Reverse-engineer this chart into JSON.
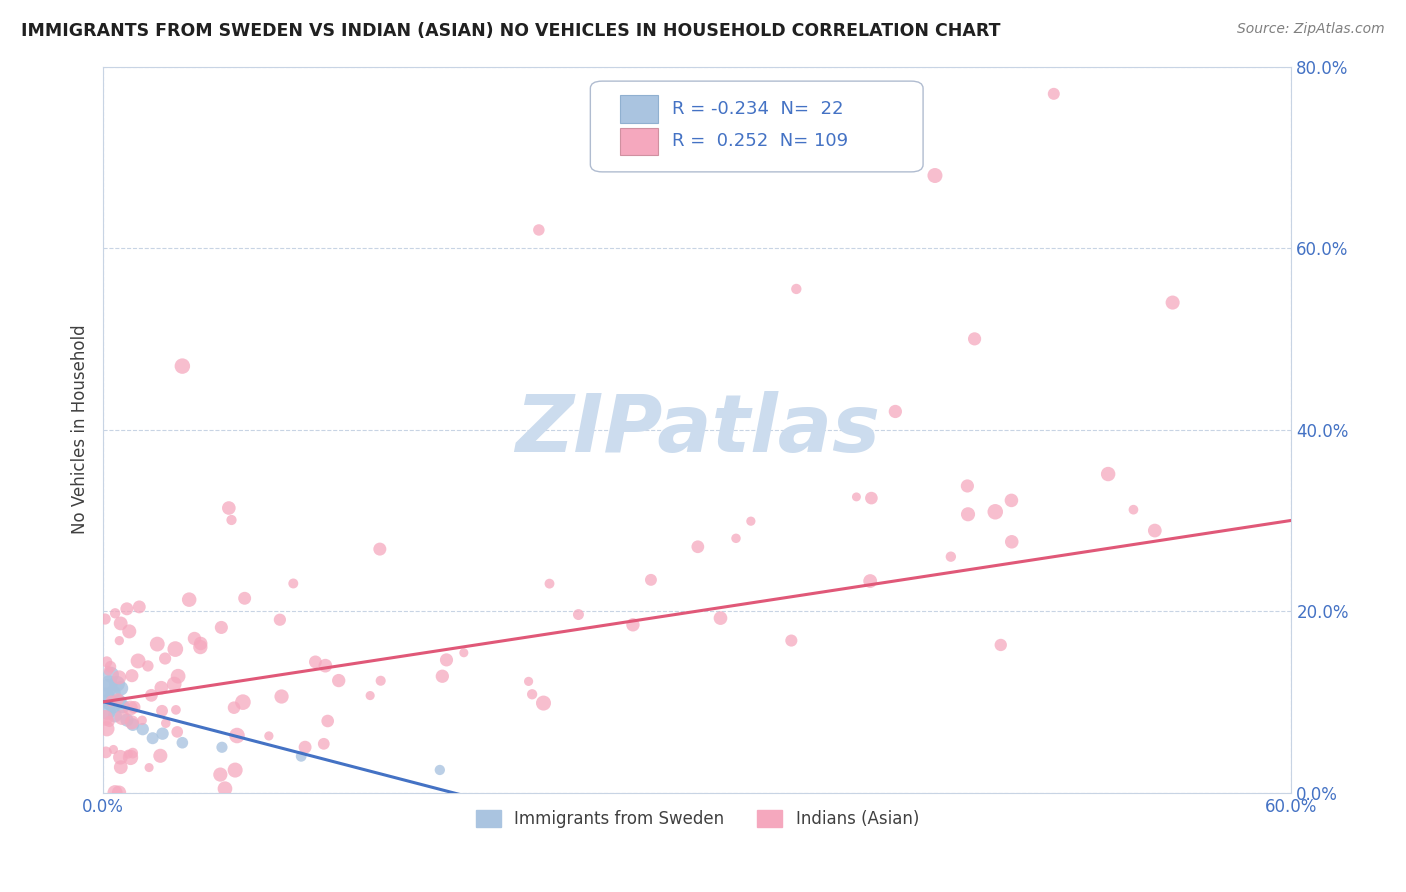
{
  "title": "IMMIGRANTS FROM SWEDEN VS INDIAN (ASIAN) NO VEHICLES IN HOUSEHOLD CORRELATION CHART",
  "source": "Source: ZipAtlas.com",
  "ylabel": "No Vehicles in Household",
  "xlim": [
    0,
    0.6
  ],
  "ylim": [
    0,
    0.8
  ],
  "xticks": [
    0.0,
    0.6
  ],
  "xticklabels": [
    "0.0%",
    "60.0%"
  ],
  "yticks": [
    0.0,
    0.2,
    0.4,
    0.6,
    0.8
  ],
  "yticklabels": [
    "0.0%",
    "20.0%",
    "40.0%",
    "60.0%",
    "80.0%"
  ],
  "legend_labels": [
    "Immigrants from Sweden",
    "Indians (Asian)"
  ],
  "legend_R": [
    -0.234,
    0.252
  ],
  "legend_N": [
    22,
    109
  ],
  "scatter_color_sweden": "#aac4e0",
  "scatter_color_indian": "#f5a8be",
  "line_color_sweden": "#4472c4",
  "line_color_indian": "#e05878",
  "watermark": "ZIPatlas",
  "watermark_color": "#ccdcee",
  "background_color": "#ffffff",
  "grid_color": "#c8d4e4",
  "title_color": "#202020",
  "axis_label_color": "#404040",
  "tick_label_color": "#4472c4"
}
